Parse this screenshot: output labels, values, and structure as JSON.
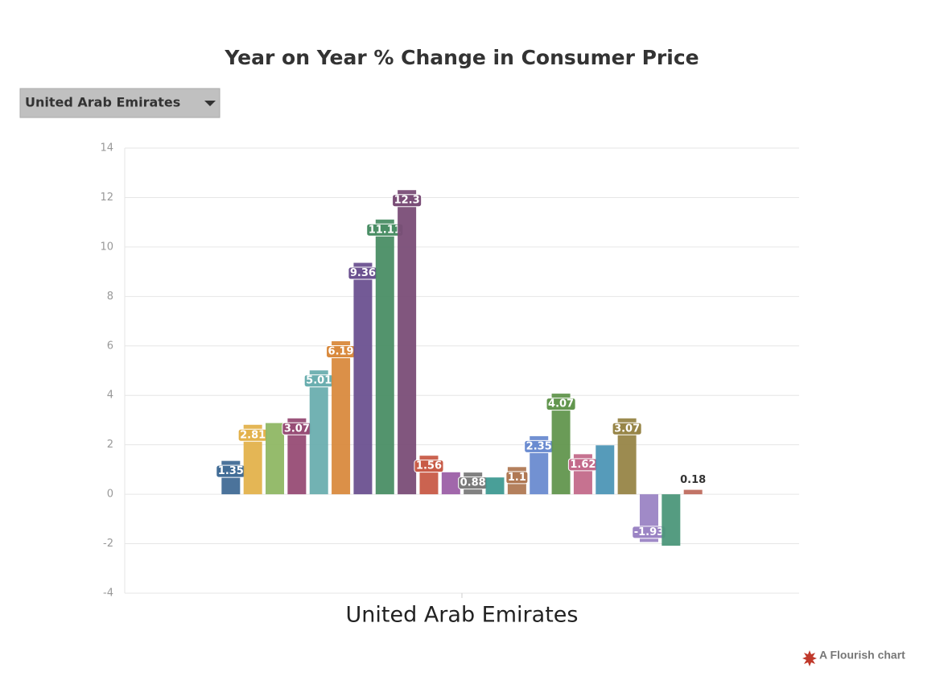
{
  "dropdown": {
    "selected": "United Arab Emirates"
  },
  "footer": "A Flourish chart",
  "chart_data": {
    "type": "bar",
    "title": "Year on Year % Change in Consumer Price",
    "categories": [
      "United Arab Emirates"
    ],
    "ylim": [
      -4,
      14
    ],
    "yticks": [
      -4,
      -2,
      0,
      2,
      4,
      6,
      8,
      10,
      12,
      14
    ],
    "grid": true,
    "series": [
      {
        "color": "#416c96",
        "values": [
          1.35
        ],
        "value_labels": [
          "1.35"
        ]
      },
      {
        "color": "#e3b24c",
        "values": [
          2.81
        ],
        "value_labels": [
          "2.81"
        ]
      },
      {
        "color": "#8fb764",
        "values": [
          2.88
        ],
        "value_labels": [
          null
        ]
      },
      {
        "color": "#974c75",
        "values": [
          3.07
        ],
        "value_labels": [
          "3.07"
        ]
      },
      {
        "color": "#6aaeaf",
        "values": [
          5.01
        ],
        "value_labels": [
          "5.01"
        ]
      },
      {
        "color": "#d98a3e",
        "values": [
          6.19
        ],
        "value_labels": [
          "6.19"
        ]
      },
      {
        "color": "#6b5190",
        "values": [
          9.36
        ],
        "value_labels": [
          "9.36"
        ]
      },
      {
        "color": "#4a8e65",
        "values": [
          11.11
        ],
        "value_labels": [
          "11.11"
        ]
      },
      {
        "color": "#7a4d77",
        "values": [
          12.3
        ],
        "value_labels": [
          "12.3"
        ]
      },
      {
        "color": "#c85b47",
        "values": [
          1.56
        ],
        "value_labels": [
          "1.56"
        ]
      },
      {
        "color": "#9c5fa6",
        "values": [
          0.89
        ],
        "value_labels": [
          null
        ]
      },
      {
        "color": "#7a7a7a",
        "values": [
          0.88
        ],
        "value_labels": [
          "0.88"
        ]
      },
      {
        "color": "#3f9a92",
        "values": [
          0.68
        ],
        "value_labels": [
          null
        ]
      },
      {
        "color": "#b07954",
        "values": [
          1.1
        ],
        "value_labels": [
          "1.1"
        ]
      },
      {
        "color": "#6a8bd0",
        "values": [
          2.35
        ],
        "value_labels": [
          "2.35"
        ]
      },
      {
        "color": "#62964e",
        "values": [
          4.07
        ],
        "value_labels": [
          "4.07"
        ]
      },
      {
        "color": "#c36a8a",
        "values": [
          1.62
        ],
        "value_labels": [
          "1.62"
        ]
      },
      {
        "color": "#4d96b6",
        "values": [
          1.98
        ],
        "value_labels": [
          null
        ]
      },
      {
        "color": "#978547",
        "values": [
          3.07
        ],
        "value_labels": [
          "3.07"
        ]
      },
      {
        "color": "#9b84c4",
        "values": [
          -1.93
        ],
        "value_labels": [
          "-1.93"
        ]
      },
      {
        "color": "#4c977a",
        "values": [
          -2.08
        ],
        "value_labels": [
          null
        ]
      },
      {
        "color": "#bf6d5f",
        "values": [
          0.18
        ],
        "value_labels": [
          "0.18"
        ]
      }
    ]
  }
}
